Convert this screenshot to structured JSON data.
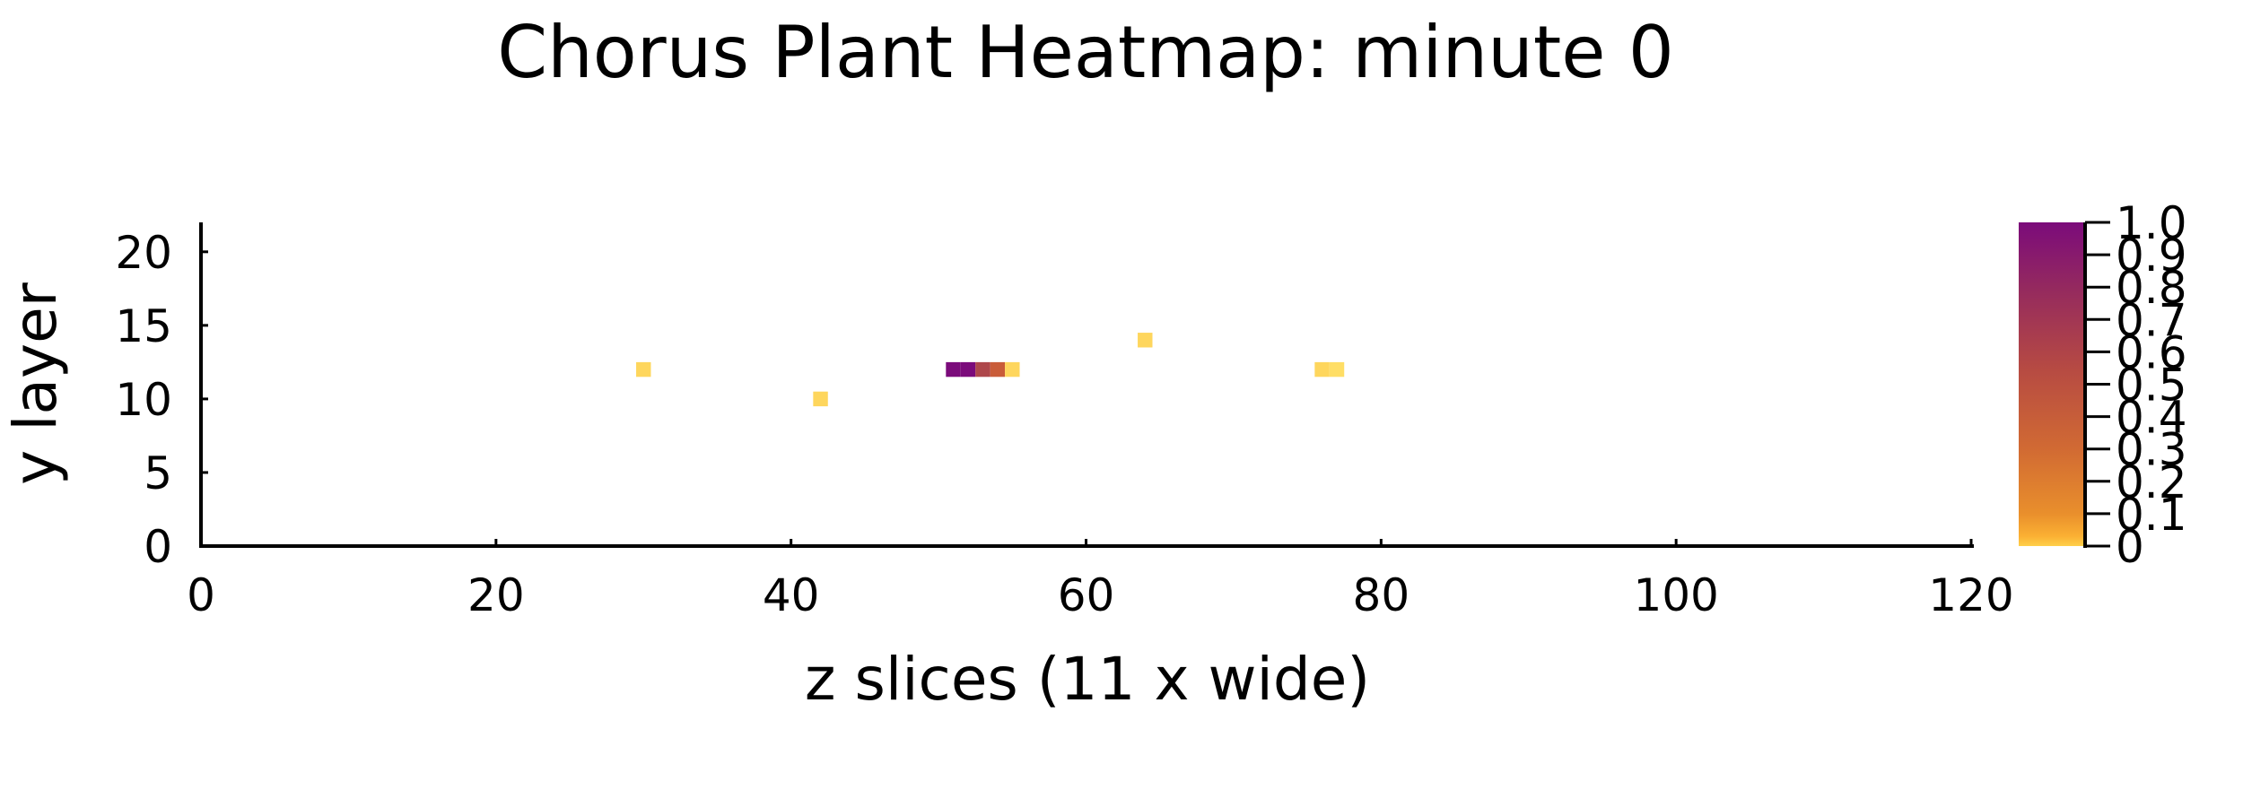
{
  "chart_data": {
    "type": "heatmap",
    "title": "Chorus Plant Heatmap: minute 0",
    "xlabel": "z slices (11 x wide)",
    "ylabel": "y layer",
    "xlim": [
      0,
      120
    ],
    "ylim": [
      0,
      22
    ],
    "x_ticks": [
      0,
      20,
      40,
      60,
      80,
      100,
      120
    ],
    "y_ticks": [
      0,
      5,
      10,
      15,
      20
    ],
    "grid": false,
    "colorbar": {
      "min": 0,
      "max": 1,
      "ticks": [
        0,
        0.1,
        0.2,
        0.3,
        0.4,
        0.5,
        0.6,
        0.7,
        0.8,
        0.9,
        1.0
      ],
      "tick_labels": [
        "0",
        "0.1",
        "0.2",
        "0.3",
        "0.4",
        "0.5",
        "0.6",
        "0.7",
        "0.8",
        "0.9",
        "1.0"
      ],
      "colors": [
        "#ffe36b",
        "#fbb033",
        "#de7a2e",
        "#c2523c",
        "#993b59",
        "#7b0b7b"
      ]
    },
    "cells": [
      {
        "x": 30,
        "y": 12,
        "value": 0.05
      },
      {
        "x": 42,
        "y": 10,
        "value": 0.05
      },
      {
        "x": 51,
        "y": 12,
        "value": 1.0
      },
      {
        "x": 52,
        "y": 12,
        "value": 1.0
      },
      {
        "x": 53,
        "y": 12,
        "value": 0.7
      },
      {
        "x": 54,
        "y": 12,
        "value": 0.55
      },
      {
        "x": 55,
        "y": 12,
        "value": 0.05
      },
      {
        "x": 64,
        "y": 14,
        "value": 0.05
      },
      {
        "x": 76,
        "y": 12,
        "value": 0.05
      },
      {
        "x": 77,
        "y": 12,
        "value": 0.02
      }
    ]
  }
}
